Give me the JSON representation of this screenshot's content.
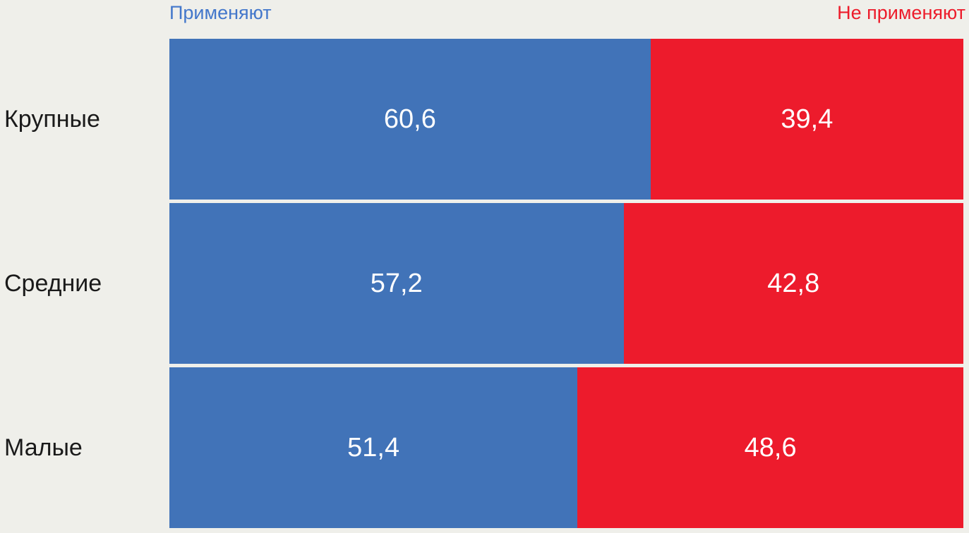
{
  "legend": {
    "apply_label": "Применяют",
    "not_apply_label": "Не применяют"
  },
  "colors": {
    "apply_bar": "#4173B8",
    "not_apply_bar": "#ED1B2C",
    "legend_apply_text": "#4377CB",
    "legend_not_apply_text": "#ED1C2B",
    "background": "#EFEFEA",
    "category_text": "#1A1A1A",
    "value_text": "#FFFFFF"
  },
  "chart_data": {
    "type": "bar",
    "orientation": "horizontal",
    "stacked": true,
    "unit": "percent",
    "xlim": [
      0,
      100
    ],
    "legend_position": "top",
    "grid": false,
    "categories": [
      "Крупные",
      "Средние",
      "Малые"
    ],
    "series": [
      {
        "name": "Применяют",
        "color": "#4173B8",
        "values": [
          60.6,
          57.2,
          51.4
        ]
      },
      {
        "name": "Не применяют",
        "color": "#ED1B2C",
        "values": [
          39.4,
          42.8,
          48.6
        ]
      }
    ],
    "rows": [
      {
        "label": "Крупные",
        "apply": 60.6,
        "not_apply": 39.4,
        "apply_text": "60,6",
        "not_apply_text": "39,4"
      },
      {
        "label": "Средние",
        "apply": 57.2,
        "not_apply": 42.8,
        "apply_text": "57,2",
        "not_apply_text": "42,8"
      },
      {
        "label": "Малые",
        "apply": 51.4,
        "not_apply": 48.6,
        "apply_text": "51,4",
        "not_apply_text": "48,6"
      }
    ]
  }
}
